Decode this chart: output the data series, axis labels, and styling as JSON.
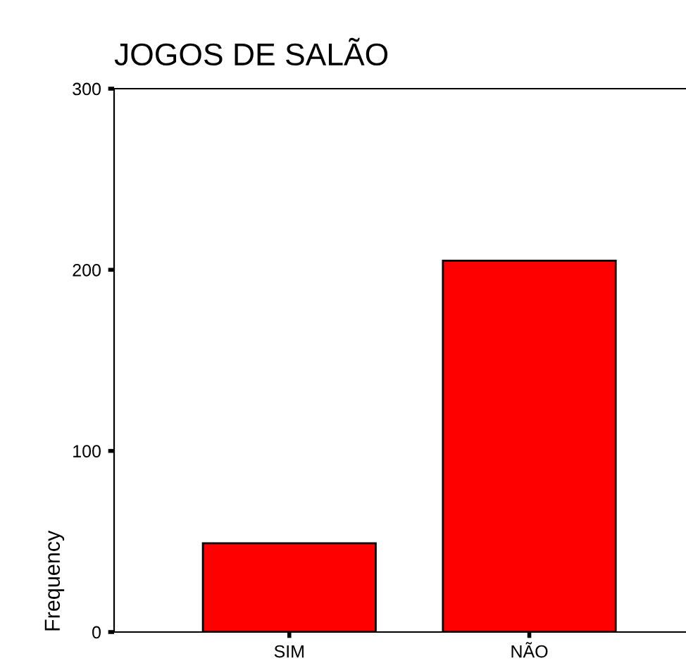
{
  "chart_data": {
    "type": "bar",
    "title": "JOGOS DE SALÃO",
    "ylabel": "Frequency",
    "categories": [
      "SIM",
      "NÃO"
    ],
    "values": [
      49,
      205
    ],
    "color": "#ff0000",
    "ylim": [
      0,
      300
    ],
    "yticks": [
      0,
      100,
      200,
      300
    ],
    "grid": false
  }
}
